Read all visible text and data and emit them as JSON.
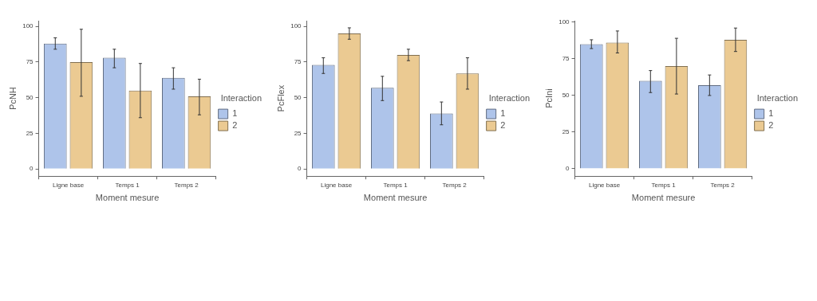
{
  "chart_data": [
    {
      "type": "bar",
      "xlabel": "Moment mesure",
      "ylabel": "PcNH",
      "legend_title": "Interaction",
      "legend": "right",
      "categories": [
        "Ligne base",
        "Temps 1",
        "Temps 2"
      ],
      "ylim": [
        -5,
        104
      ],
      "yticks": [
        0,
        25,
        50,
        75,
        100
      ],
      "series": [
        {
          "name": "1",
          "color": "#aec4ea",
          "values": [
            88,
            78,
            64
          ],
          "errors": [
            [
              84,
              92
            ],
            [
              71,
              84
            ],
            [
              56,
              71
            ]
          ]
        },
        {
          "name": "2",
          "color": "#ebca92",
          "values": [
            75,
            55,
            51
          ],
          "errors": [
            [
              51,
              98
            ],
            [
              36,
              74
            ],
            [
              38,
              63
            ]
          ]
        }
      ]
    },
    {
      "type": "bar",
      "xlabel": "Moment mesure",
      "ylabel": "PcFlex",
      "legend_title": "Interaction",
      "legend": "right",
      "categories": [
        "Ligne base",
        "Temps 1",
        "Temps 2"
      ],
      "ylim": [
        -5,
        104
      ],
      "yticks": [
        0,
        25,
        50,
        75,
        100
      ],
      "series": [
        {
          "name": "1",
          "color": "#aec4ea",
          "values": [
            73,
            57,
            39
          ],
          "errors": [
            [
              67,
              78
            ],
            [
              48,
              65
            ],
            [
              31,
              47
            ]
          ]
        },
        {
          "name": "2",
          "color": "#ebca92",
          "values": [
            95,
            80,
            67
          ],
          "errors": [
            [
              91,
              99
            ],
            [
              76,
              84
            ],
            [
              56,
              78
            ]
          ]
        }
      ]
    },
    {
      "type": "bar",
      "xlabel": "Moment mesure",
      "ylabel": "PcIni",
      "legend_title": "Interaction",
      "legend": "right",
      "categories": [
        "Ligne base",
        "Temps 1",
        "Temps 2"
      ],
      "ylim": [
        -5,
        101
      ],
      "yticks": [
        0,
        25,
        50,
        75,
        100
      ],
      "series": [
        {
          "name": "1",
          "color": "#aec4ea",
          "values": [
            85,
            60,
            57
          ],
          "errors": [
            [
              82,
              88
            ],
            [
              52,
              67
            ],
            [
              50,
              64
            ]
          ]
        },
        {
          "name": "2",
          "color": "#ebca92",
          "values": [
            86,
            70,
            88
          ],
          "errors": [
            [
              79,
              94
            ],
            [
              51,
              89
            ],
            [
              80,
              96
            ]
          ]
        }
      ]
    }
  ]
}
